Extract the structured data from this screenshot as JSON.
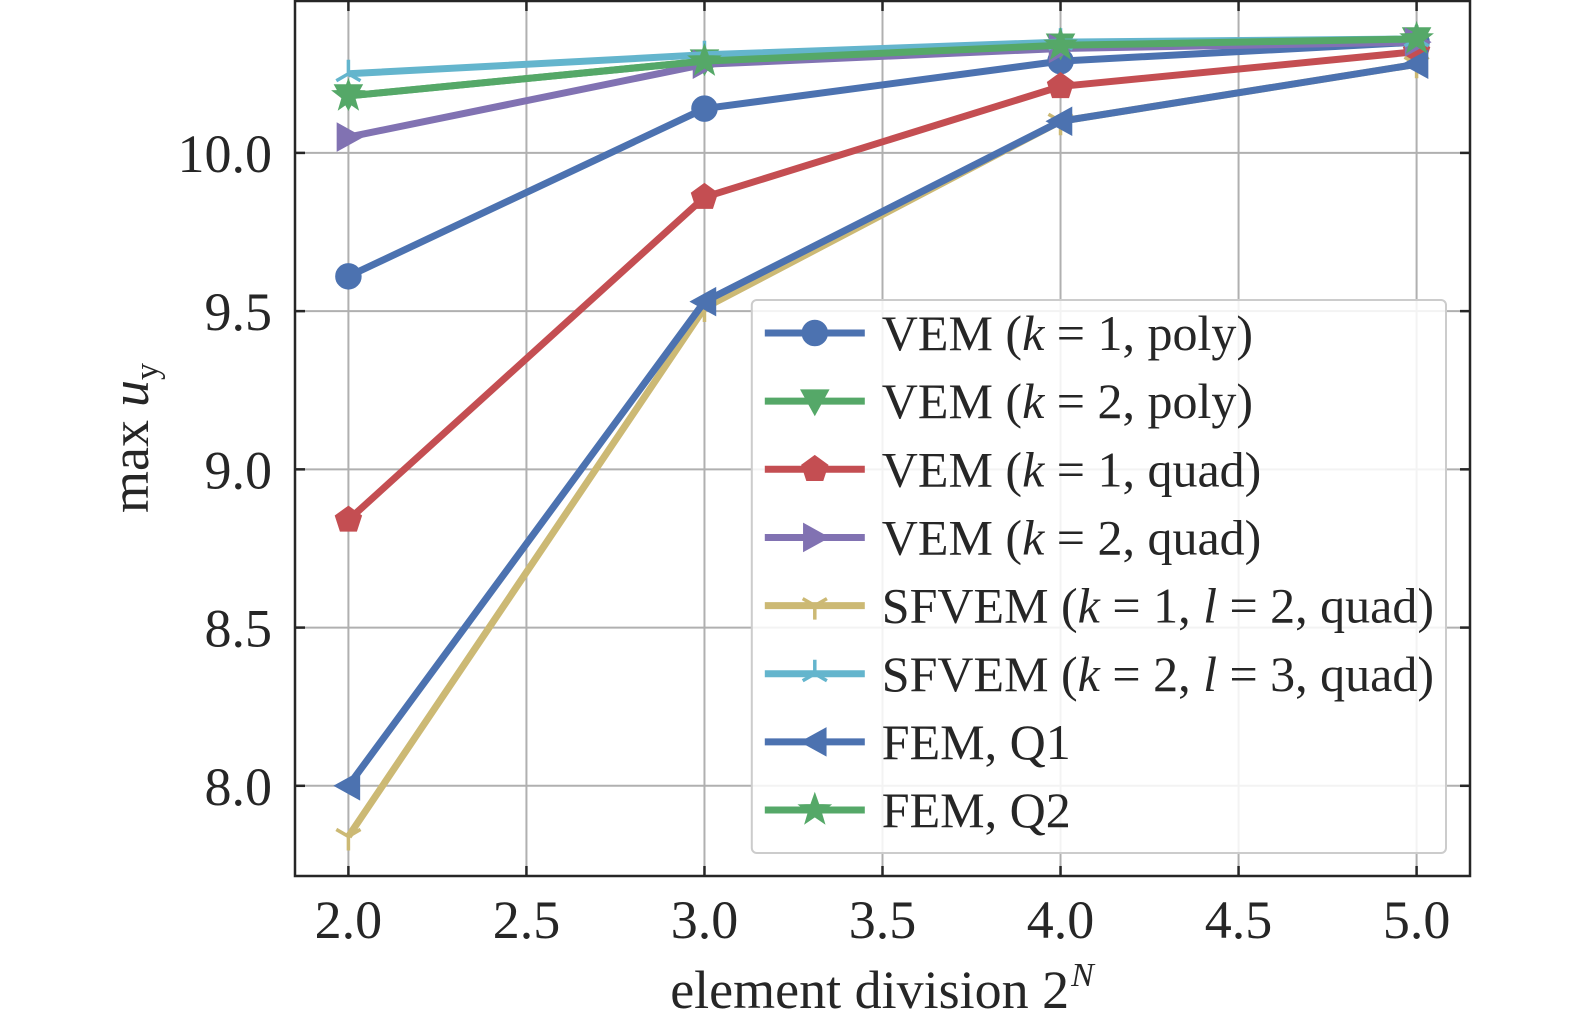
{
  "chart_data": {
    "type": "line",
    "xlabel": {
      "text": "element division 2",
      "sup": "N"
    },
    "ylabel": {
      "text": "max",
      "var": "u",
      "sub": "y"
    },
    "xlim": [
      1.85,
      5.15
    ],
    "ylim": [
      7.715,
      10.48
    ],
    "xticks": [
      2.0,
      2.5,
      3.0,
      3.5,
      4.0,
      4.5,
      5.0
    ],
    "xtick_labels": [
      "2.0",
      "2.5",
      "3.0",
      "3.5",
      "4.0",
      "4.5",
      "5.0"
    ],
    "yticks": [
      8.0,
      8.5,
      9.0,
      9.5,
      10.0
    ],
    "ytick_labels": [
      "8.0",
      "8.5",
      "9.0",
      "9.5",
      "10.0"
    ],
    "grid": true,
    "legend_position": "lower-right",
    "x": [
      2.0,
      3.0,
      4.0,
      5.0
    ],
    "series": [
      {
        "name": "VEM (k = 1, poly)",
        "color": "#4C72B0",
        "marker": "circle",
        "values": [
          9.61,
          10.14,
          10.29,
          10.35
        ]
      },
      {
        "name": "VEM (k = 2, poly)",
        "color": "#55A868",
        "marker": "triangle-down",
        "values": [
          10.18,
          10.29,
          10.34,
          10.36
        ]
      },
      {
        "name": "VEM (k = 1, quad)",
        "color": "#C44E52",
        "marker": "pentagon",
        "values": [
          8.84,
          9.86,
          10.21,
          10.32
        ]
      },
      {
        "name": "VEM (k = 2, quad)",
        "color": "#8172B2",
        "marker": "triangle-right",
        "values": [
          10.05,
          10.28,
          10.33,
          10.35
        ]
      },
      {
        "name": "SFVEM (k = 1, l = 2, quad)",
        "color": "#CCB974",
        "marker": "tri-down",
        "values": [
          7.84,
          9.51,
          10.1,
          10.28
        ]
      },
      {
        "name": "SFVEM (k = 2, l = 3, quad)",
        "color": "#64B5CD",
        "marker": "tri-up",
        "values": [
          10.25,
          10.31,
          10.35,
          10.36
        ]
      },
      {
        "name": "FEM, Q1",
        "color": "#4C72B0",
        "marker": "triangle-left",
        "values": [
          8.0,
          9.53,
          10.1,
          10.28
        ]
      },
      {
        "name": "FEM, Q2",
        "color": "#55A868",
        "marker": "star",
        "values": [
          10.18,
          10.29,
          10.34,
          10.36
        ]
      }
    ]
  }
}
